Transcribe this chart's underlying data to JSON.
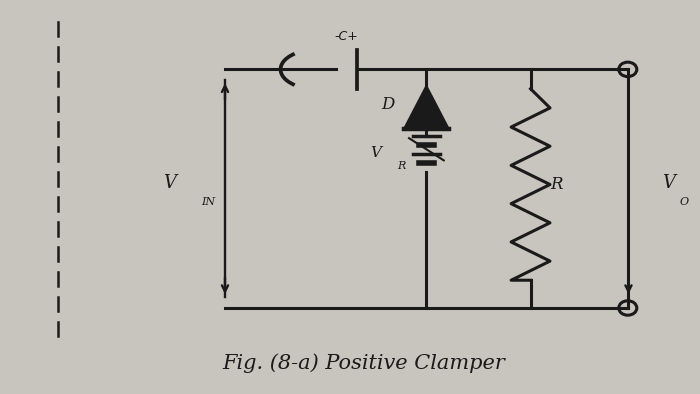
{
  "bg_color": "#c8c4be",
  "circuit_bg": "#dddad5",
  "line_color": "#1a1a1a",
  "title": "Fig. (8-a) Positive Clamper",
  "title_fontsize": 15,
  "VIN_label": "V",
  "VIN_sub": "IN",
  "VO_label": "V",
  "VO_sub": "O",
  "VR_label": "V",
  "VR_sub": "R",
  "D_label": "D",
  "R_label": "R",
  "C_label": "-C+",
  "lw": 2.2
}
